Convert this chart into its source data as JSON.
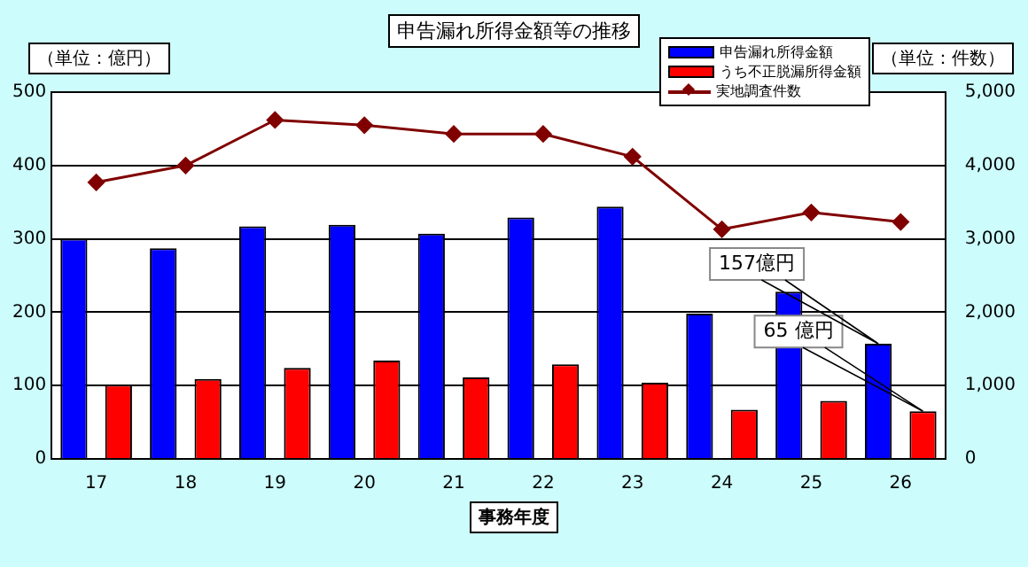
{
  "chart_data": {
    "type": "bar",
    "title": "申告漏れ所得金額等の推移",
    "xlabel": "事務年度",
    "ylabel": "（単位：億円）",
    "y2label": "（単位：件数）",
    "categories": [
      "17",
      "18",
      "19",
      "20",
      "21",
      "22",
      "23",
      "24",
      "25",
      "26"
    ],
    "series": [
      {
        "name": "申告漏れ所得金額",
        "color": "#0000ff",
        "values": [
          300,
          287,
          317,
          319,
          307,
          329,
          344,
          198,
          228,
          157
        ]
      },
      {
        "name": "うち不正脱漏所得金額",
        "color": "#ff0000",
        "values": [
          101,
          109,
          124,
          134,
          111,
          129,
          104,
          67,
          79,
          65
        ]
      },
      {
        "name": "実地調査件数",
        "type": "line",
        "axis": "y2",
        "color": "#800000",
        "marker": "diamond",
        "values": [
          3770,
          4000,
          4620,
          4550,
          4430,
          4430,
          4120,
          3130,
          3360,
          3230
        ]
      }
    ],
    "ylim": [
      0,
      500
    ],
    "yticks": [
      0,
      100,
      200,
      300,
      400,
      500
    ],
    "y2lim": [
      0,
      5000
    ],
    "y2ticks": [
      {
        "value": 0,
        "label": "0"
      },
      {
        "value": 1000,
        "label": "1,000"
      },
      {
        "value": 2000,
        "label": "2,000"
      },
      {
        "value": 3000,
        "label": "3,000"
      },
      {
        "value": 4000,
        "label": "4,000"
      },
      {
        "value": 5000,
        "label": "5,000"
      }
    ],
    "annotations": [
      "157億円",
      "65 億円"
    ],
    "grid": "y",
    "legend": "top right"
  }
}
